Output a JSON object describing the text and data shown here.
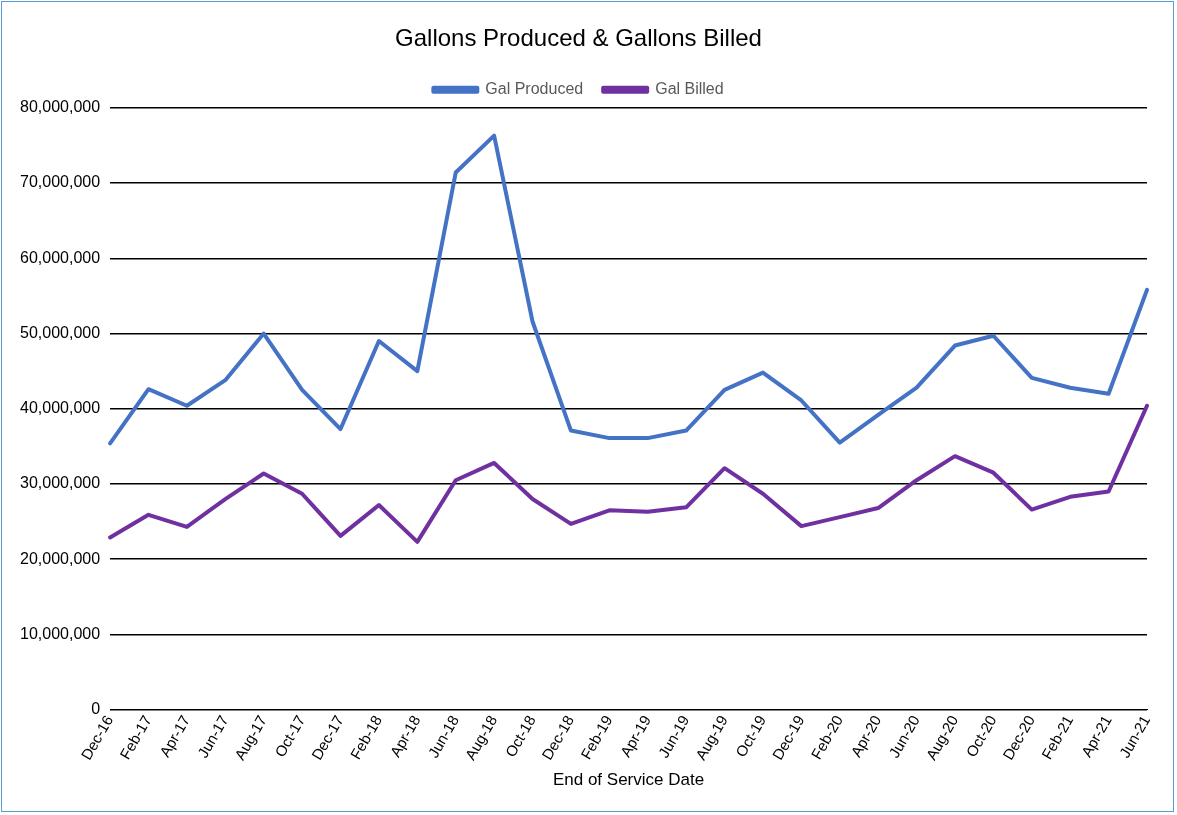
{
  "chart_data": {
    "type": "line",
    "title": "Gallons Produced & Gallons Billed",
    "xlabel": "End of Service Date",
    "categories": [
      "Dec-16",
      "Feb-17",
      "Apr-17",
      "Jun-17",
      "Aug-17",
      "Oct-17",
      "Dec-17",
      "Feb-18",
      "Apr-18",
      "Jun-18",
      "Aug-18",
      "Oct-18",
      "Dec-18",
      "Feb-19",
      "Apr-19",
      "Jun-19",
      "Aug-19",
      "Oct-19",
      "Dec-19",
      "Feb-20",
      "Apr-20",
      "Jun-20",
      "Aug-20",
      "Oct-20",
      "Dec-20",
      "Feb-21",
      "Apr-21",
      "Jun-21"
    ],
    "series": [
      {
        "name": "Gal Produced",
        "color": "#4472c4",
        "values": [
          35400000,
          42600000,
          40400000,
          43800000,
          50000000,
          42500000,
          37300000,
          49000000,
          45000000,
          71400000,
          76300000,
          51600000,
          37100000,
          36100000,
          36100000,
          37100000,
          42500000,
          44800000,
          41100000,
          35500000,
          39200000,
          42800000,
          48400000,
          49700000,
          44100000,
          42800000,
          42000000,
          55800000
        ]
      },
      {
        "name": "Gal Billed",
        "color": "#7030a0",
        "values": [
          22900000,
          25900000,
          24300000,
          28000000,
          31400000,
          28700000,
          23100000,
          27200000,
          22300000,
          30500000,
          32800000,
          28000000,
          24700000,
          26500000,
          26300000,
          26900000,
          32100000,
          28700000,
          24400000,
          25600000,
          26800000,
          30500000,
          33700000,
          31500000,
          26600000,
          28300000,
          29000000,
          40400000
        ]
      }
    ],
    "ylim": [
      0,
      80000000
    ],
    "yticks": [
      0,
      {
        "value": 10000000,
        "label": "10,000,000"
      },
      {
        "value": 20000000,
        "label": "20,000,000"
      },
      {
        "value": 30000000,
        "label": "30,000,000"
      },
      {
        "value": 40000000,
        "label": "40,000,000"
      },
      {
        "value": 50000000,
        "label": "50,000,000"
      },
      {
        "value": 60000000,
        "label": "60,000,000"
      },
      {
        "value": 70000000,
        "label": "70,000,000"
      },
      {
        "value": 80000000,
        "label": "80,000,000"
      }
    ],
    "grid": "y",
    "legend": "top",
    "marker": "none",
    "line_style": "solid"
  }
}
